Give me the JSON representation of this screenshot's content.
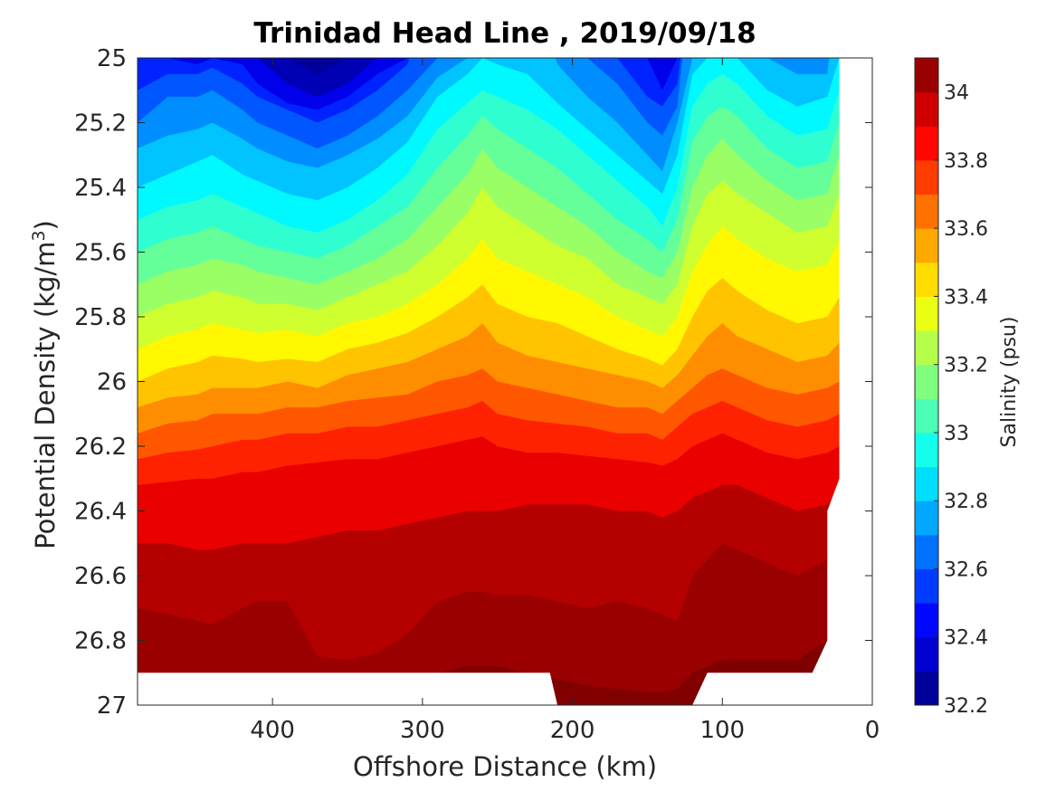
{
  "chart_data": {
    "type": "contour",
    "title": "Trinidad Head Line , 2019/09/18",
    "xlabel": "Offshore Distance (km)",
    "ylabel_main": "Potential Density (kg/m",
    "ylabel_sup": "3",
    "ylabel_close": ")",
    "xlim": [
      490,
      0
    ],
    "x_reversed": true,
    "ylim": [
      25,
      27
    ],
    "y_reversed": true,
    "x_ticks": [
      400,
      300,
      200,
      100,
      0
    ],
    "y_ticks": [
      25,
      25.2,
      25.4,
      25.6,
      25.8,
      26,
      26.2,
      26.4,
      26.6,
      26.8,
      27
    ],
    "x_tick_labels": [
      "400",
      "300",
      "200",
      "100",
      "0"
    ],
    "y_tick_labels": [
      "25",
      "25.2",
      "25.4",
      "25.6",
      "25.8",
      "26",
      "26.2",
      "26.4",
      "26.6",
      "26.8",
      "27"
    ],
    "colorbar": {
      "label": "Salinity (psu)",
      "range": [
        32.2,
        34.1
      ],
      "levels": [
        32.2,
        32.3,
        32.4,
        32.5,
        32.6,
        32.7,
        32.8,
        32.9,
        33.0,
        33.1,
        33.2,
        33.3,
        33.4,
        33.5,
        33.6,
        33.7,
        33.8,
        33.9,
        34.0,
        34.1
      ],
      "tick_values": [
        32.2,
        32.4,
        32.6,
        32.8,
        33,
        33.2,
        33.4,
        33.6,
        33.8,
        34
      ],
      "tick_labels": [
        "32.2",
        "32.4",
        "32.6",
        "32.8",
        "33",
        "33.2",
        "33.4",
        "33.6",
        "33.8",
        "34"
      ],
      "colormap": "jet"
    },
    "isopycnal_profiles": {
      "x": [
        490,
        470,
        450,
        440,
        420,
        410,
        390,
        370,
        350,
        330,
        310,
        290,
        270,
        260,
        250,
        230,
        210,
        190,
        170,
        150,
        140,
        130,
        120,
        110,
        100,
        90,
        70,
        50,
        30,
        22
      ],
      "levels": [
        {
          "salinity": 32.3,
          "density": [
            24.7,
            24.7,
            24.7,
            24.7,
            24.7,
            24.7,
            25.0,
            25.05,
            25.0,
            24.7,
            24.7,
            24.7,
            24.7,
            24.7,
            24.7,
            24.7,
            24.7,
            24.7,
            24.7,
            24.7,
            24.7,
            24.7,
            24.7,
            24.7,
            24.7,
            24.7,
            24.7,
            24.7,
            24.7,
            24.7
          ]
        },
        {
          "salinity": 32.4,
          "density": [
            24.7,
            24.7,
            24.7,
            24.7,
            24.7,
            25.0,
            25.08,
            25.12,
            25.08,
            25.0,
            24.7,
            24.7,
            24.7,
            24.7,
            24.7,
            24.7,
            24.7,
            24.7,
            24.7,
            24.7,
            24.7,
            24.7,
            24.7,
            24.7,
            24.7,
            24.7,
            24.7,
            24.7,
            24.7,
            24.7
          ]
        },
        {
          "salinity": 32.5,
          "density": [
            24.7,
            25.0,
            25.02,
            25.0,
            25.02,
            25.08,
            25.14,
            25.16,
            25.12,
            25.05,
            25.0,
            24.7,
            24.7,
            24.7,
            24.7,
            24.7,
            24.7,
            24.7,
            24.7,
            25.0,
            25.1,
            25.0,
            24.7,
            24.7,
            24.7,
            24.7,
            24.7,
            24.7,
            24.7,
            24.7
          ]
        },
        {
          "salinity": 32.6,
          "density": [
            25.1,
            25.05,
            25.05,
            25.03,
            25.08,
            25.12,
            25.16,
            25.2,
            25.16,
            25.1,
            25.02,
            24.7,
            24.7,
            24.7,
            24.7,
            24.7,
            24.7,
            24.7,
            25.0,
            25.12,
            25.15,
            25.08,
            24.7,
            24.7,
            24.7,
            24.7,
            24.7,
            24.7,
            24.7,
            24.7
          ]
        },
        {
          "salinity": 32.7,
          "density": [
            25.2,
            25.12,
            25.12,
            25.1,
            25.16,
            25.2,
            25.24,
            25.28,
            25.24,
            25.18,
            25.1,
            25.0,
            24.7,
            24.7,
            24.7,
            24.7,
            24.7,
            25.0,
            25.08,
            25.2,
            25.24,
            25.15,
            24.7,
            24.7,
            24.7,
            24.7,
            24.7,
            24.7,
            24.7,
            24.7
          ]
        },
        {
          "salinity": 32.8,
          "density": [
            25.28,
            25.24,
            25.22,
            25.2,
            25.25,
            25.28,
            25.32,
            25.34,
            25.3,
            25.25,
            25.18,
            25.06,
            25.0,
            24.7,
            24.7,
            24.7,
            25.02,
            25.12,
            25.2,
            25.3,
            25.35,
            25.2,
            25.0,
            24.7,
            24.7,
            24.7,
            25.0,
            25.05,
            25.05,
            24.7
          ]
        },
        {
          "salinity": 32.9,
          "density": [
            25.4,
            25.36,
            25.32,
            25.3,
            25.36,
            25.38,
            25.42,
            25.44,
            25.4,
            25.34,
            25.26,
            25.12,
            25.05,
            25.0,
            25.02,
            25.05,
            25.14,
            25.22,
            25.3,
            25.38,
            25.42,
            25.3,
            25.05,
            25.0,
            24.95,
            25.0,
            25.1,
            25.15,
            25.12,
            25.0
          ]
        },
        {
          "salinity": 33.0,
          "density": [
            25.5,
            25.46,
            25.44,
            25.42,
            25.46,
            25.48,
            25.52,
            25.54,
            25.5,
            25.44,
            25.36,
            25.22,
            25.14,
            25.1,
            25.12,
            25.16,
            25.22,
            25.3,
            25.38,
            25.46,
            25.52,
            25.4,
            25.15,
            25.08,
            25.05,
            25.08,
            25.18,
            25.24,
            25.22,
            25.1
          ]
        },
        {
          "salinity": 33.1,
          "density": [
            25.6,
            25.56,
            25.54,
            25.52,
            25.56,
            25.58,
            25.6,
            25.62,
            25.58,
            25.52,
            25.46,
            25.34,
            25.24,
            25.18,
            25.22,
            25.28,
            25.34,
            25.42,
            25.5,
            25.56,
            25.6,
            25.5,
            25.26,
            25.18,
            25.15,
            25.18,
            25.28,
            25.34,
            25.32,
            25.2
          ]
        },
        {
          "salinity": 33.2,
          "density": [
            25.7,
            25.66,
            25.64,
            25.62,
            25.64,
            25.66,
            25.68,
            25.7,
            25.66,
            25.62,
            25.56,
            25.46,
            25.36,
            25.28,
            25.34,
            25.4,
            25.46,
            25.52,
            25.6,
            25.66,
            25.68,
            25.6,
            25.4,
            25.3,
            25.25,
            25.3,
            25.38,
            25.44,
            25.42,
            25.3
          ]
        },
        {
          "salinity": 33.3,
          "density": [
            25.8,
            25.76,
            25.74,
            25.72,
            25.74,
            25.76,
            25.76,
            25.78,
            25.74,
            25.7,
            25.66,
            25.58,
            25.48,
            25.4,
            25.46,
            25.52,
            25.58,
            25.62,
            25.7,
            25.74,
            25.76,
            25.7,
            25.52,
            25.42,
            25.38,
            25.42,
            25.48,
            25.54,
            25.52,
            25.42
          ]
        },
        {
          "salinity": 33.4,
          "density": [
            25.9,
            25.86,
            25.84,
            25.82,
            25.84,
            25.85,
            25.84,
            25.86,
            25.82,
            25.8,
            25.76,
            25.7,
            25.62,
            25.56,
            25.62,
            25.66,
            25.7,
            25.74,
            25.8,
            25.84,
            25.86,
            25.8,
            25.66,
            25.58,
            25.52,
            25.56,
            25.62,
            25.66,
            25.64,
            25.56
          ]
        },
        {
          "salinity": 33.5,
          "density": [
            26.0,
            25.96,
            25.94,
            25.92,
            25.93,
            25.94,
            25.93,
            25.94,
            25.9,
            25.88,
            25.85,
            25.8,
            25.74,
            25.7,
            25.76,
            25.8,
            25.82,
            25.86,
            25.9,
            25.93,
            25.95,
            25.9,
            25.8,
            25.72,
            25.68,
            25.72,
            25.78,
            25.82,
            25.8,
            25.74
          ]
        },
        {
          "salinity": 33.6,
          "density": [
            26.08,
            26.05,
            26.04,
            26.02,
            26.02,
            26.02,
            26.0,
            26.02,
            25.98,
            25.96,
            25.94,
            25.9,
            25.86,
            25.82,
            25.88,
            25.92,
            25.94,
            25.96,
            25.98,
            26.0,
            26.02,
            25.98,
            25.92,
            25.86,
            25.82,
            25.86,
            25.9,
            25.94,
            25.92,
            25.88
          ]
        },
        {
          "salinity": 33.7,
          "density": [
            26.16,
            26.13,
            26.12,
            26.1,
            26.1,
            26.1,
            26.08,
            26.08,
            26.06,
            26.05,
            26.04,
            26.0,
            25.98,
            25.96,
            26.0,
            26.02,
            26.04,
            26.06,
            26.08,
            26.08,
            26.1,
            26.06,
            26.02,
            25.98,
            25.96,
            25.98,
            26.02,
            26.04,
            26.02,
            26.0
          ]
        },
        {
          "salinity": 33.8,
          "density": [
            26.24,
            26.22,
            26.21,
            26.2,
            26.18,
            26.18,
            26.16,
            26.16,
            26.14,
            26.14,
            26.12,
            26.1,
            26.08,
            26.06,
            26.1,
            26.12,
            26.13,
            26.14,
            26.16,
            26.16,
            26.18,
            26.14,
            26.1,
            26.08,
            26.06,
            26.08,
            26.12,
            26.14,
            26.12,
            26.1
          ]
        },
        {
          "salinity": 33.9,
          "density": [
            26.32,
            26.31,
            26.3,
            26.3,
            26.28,
            26.28,
            26.26,
            26.25,
            26.24,
            26.24,
            26.22,
            26.2,
            26.18,
            26.17,
            26.2,
            26.22,
            26.22,
            26.23,
            26.24,
            26.25,
            26.26,
            26.24,
            26.2,
            26.18,
            26.16,
            26.18,
            26.22,
            26.24,
            26.22,
            26.2
          ]
        },
        {
          "salinity": 34.0,
          "density": [
            26.5,
            26.5,
            26.52,
            26.52,
            26.5,
            26.5,
            26.5,
            26.48,
            26.46,
            26.46,
            26.44,
            26.42,
            26.4,
            26.4,
            26.4,
            26.38,
            26.38,
            26.38,
            26.4,
            26.4,
            26.42,
            26.4,
            26.36,
            26.34,
            26.32,
            26.32,
            26.36,
            26.4,
            26.38,
            26.34
          ]
        },
        {
          "salinity": 34.05,
          "density": [
            26.7,
            26.72,
            26.74,
            26.75,
            26.7,
            26.68,
            26.68,
            26.85,
            26.86,
            26.84,
            26.78,
            26.68,
            26.65,
            26.65,
            26.66,
            26.66,
            26.68,
            26.7,
            26.68,
            26.7,
            26.72,
            26.74,
            26.6,
            26.55,
            26.5,
            26.52,
            26.56,
            26.6,
            26.55,
            26.5
          ]
        },
        {
          "salinity": 34.1,
          "density": [
            27.2,
            27.2,
            27.2,
            27.2,
            27.2,
            27.2,
            27.2,
            27.2,
            27.2,
            27.2,
            27.2,
            26.9,
            26.88,
            26.88,
            26.88,
            26.9,
            26.92,
            26.94,
            26.95,
            26.96,
            26.96,
            26.95,
            26.9,
            26.88,
            26.86,
            26.86,
            26.86,
            26.86,
            26.8,
            27.2
          ]
        }
      ],
      "data_boundary": {
        "left_x": 490,
        "bottom": [
          [
            490,
            26.9
          ],
          [
            215,
            26.9
          ],
          [
            210,
            27.0
          ],
          [
            120,
            27.0
          ],
          [
            110,
            26.9
          ],
          [
            40,
            26.9
          ],
          [
            30,
            26.8
          ],
          [
            30,
            26.4
          ],
          [
            22,
            26.3
          ],
          [
            22,
            25.0
          ]
        ]
      }
    }
  }
}
